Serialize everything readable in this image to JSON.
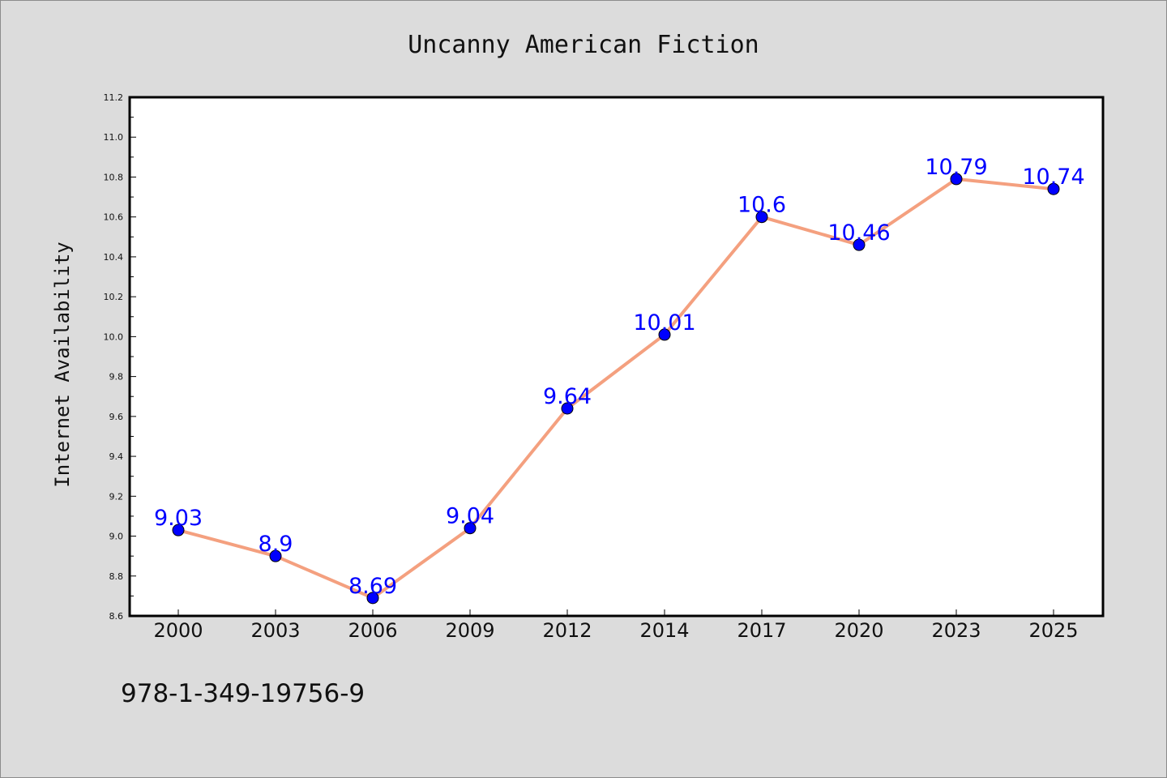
{
  "chart_data": {
    "type": "line",
    "title": "Uncanny American Fiction",
    "xlabel": "",
    "ylabel": "Internet Availability",
    "categories": [
      "2000",
      "2003",
      "2006",
      "2009",
      "2012",
      "2014",
      "2017",
      "2020",
      "2023",
      "2025"
    ],
    "series": [
      {
        "values": [
          9.03,
          8.9,
          8.69,
          9.04,
          9.64,
          10.01,
          10.6,
          10.46,
          10.79,
          10.74
        ],
        "labels": [
          "9.03",
          "8.9",
          "8.69",
          "9.04",
          "9.64",
          "10.01",
          "10.6",
          "10.46",
          "10.79",
          "10.74"
        ],
        "line_color": "#f4a07f",
        "marker_color": "#0000ff"
      }
    ],
    "ylim": [
      8.6,
      11.2
    ],
    "yticks": [
      "8.6",
      "8.8",
      "9.0",
      "9.2",
      "9.4",
      "9.6",
      "9.8",
      "10.0",
      "10.2",
      "10.4",
      "10.6",
      "10.8",
      "11.0",
      "11.2"
    ],
    "grid": false,
    "legend": "none"
  },
  "footer": {
    "isbn": "978-1-349-19756-9"
  }
}
